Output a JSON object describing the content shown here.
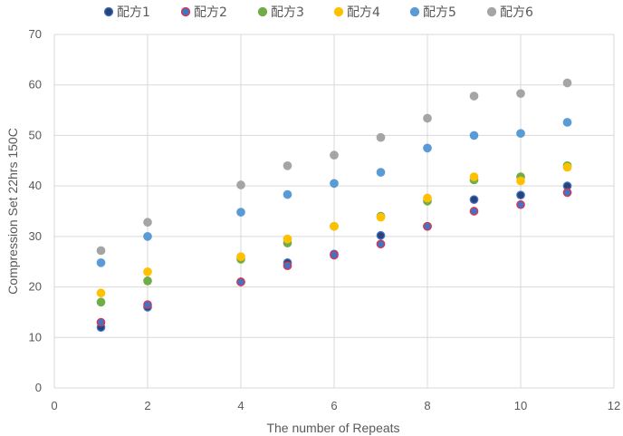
{
  "chart_data": {
    "type": "scatter",
    "title": "",
    "xlabel": "The number of Repeats",
    "ylabel": "Compression Set 22hrs 150C",
    "xlim": [
      0,
      12
    ],
    "ylim": [
      0,
      70
    ],
    "xticks": [
      0,
      2,
      4,
      6,
      8,
      10,
      12
    ],
    "yticks": [
      0,
      10,
      20,
      30,
      40,
      50,
      60,
      70
    ],
    "x_gridlines": true,
    "y_gridlines": true,
    "legend_position": "top",
    "series": [
      {
        "name": "配方1",
        "color": "#264478",
        "edge": "#4472c4",
        "points": [
          [
            1,
            12
          ],
          [
            2,
            16
          ],
          [
            4,
            21
          ],
          [
            5,
            24.8
          ],
          [
            6,
            26.5
          ],
          [
            7,
            30.2
          ],
          [
            8,
            32
          ],
          [
            9,
            37.3
          ],
          [
            10,
            38.2
          ],
          [
            11,
            40
          ]
        ]
      },
      {
        "name": "配方2",
        "color": "#4472c4",
        "edge": "#e0344a",
        "points": [
          [
            1,
            13
          ],
          [
            2,
            16.5
          ],
          [
            4,
            21
          ],
          [
            5,
            24.2
          ],
          [
            6,
            26.3
          ],
          [
            7,
            28.5
          ],
          [
            8,
            32
          ],
          [
            9,
            35
          ],
          [
            10,
            36.3
          ],
          [
            11,
            38.7
          ]
        ]
      },
      {
        "name": "配方3",
        "color": "#70ad47",
        "edge": "#70ad47",
        "points": [
          [
            1,
            17
          ],
          [
            2,
            21.2
          ],
          [
            4,
            25.5
          ],
          [
            5,
            28.7
          ],
          [
            6,
            32
          ],
          [
            7,
            34
          ],
          [
            8,
            37
          ],
          [
            9,
            41.2
          ],
          [
            10,
            41.8
          ],
          [
            11,
            44
          ]
        ]
      },
      {
        "name": "配方4",
        "color": "#ffc000",
        "edge": "#ffc000",
        "points": [
          [
            1,
            18.8
          ],
          [
            2,
            23
          ],
          [
            4,
            26
          ],
          [
            5,
            29.5
          ],
          [
            6,
            32
          ],
          [
            7,
            33.8
          ],
          [
            8,
            37.6
          ],
          [
            9,
            41.8
          ],
          [
            10,
            41
          ],
          [
            11,
            43.7
          ]
        ]
      },
      {
        "name": "配方5",
        "color": "#5b9bd5",
        "edge": "#5b9bd5",
        "points": [
          [
            1,
            24.8
          ],
          [
            2,
            30
          ],
          [
            4,
            34.8
          ],
          [
            5,
            38.3
          ],
          [
            6,
            40.5
          ],
          [
            7,
            42.7
          ],
          [
            8,
            47.5
          ],
          [
            9,
            50
          ],
          [
            10,
            50.4
          ],
          [
            11,
            52.6
          ]
        ]
      },
      {
        "name": "配方6",
        "color": "#a5a5a5",
        "edge": "#a5a5a5",
        "points": [
          [
            1,
            27.2
          ],
          [
            2,
            32.8
          ],
          [
            4,
            40.2
          ],
          [
            5,
            44
          ],
          [
            6,
            46.1
          ],
          [
            7,
            49.6
          ],
          [
            8,
            53.4
          ],
          [
            9,
            57.8
          ],
          [
            10,
            58.3
          ],
          [
            11,
            60.4
          ]
        ]
      }
    ]
  }
}
